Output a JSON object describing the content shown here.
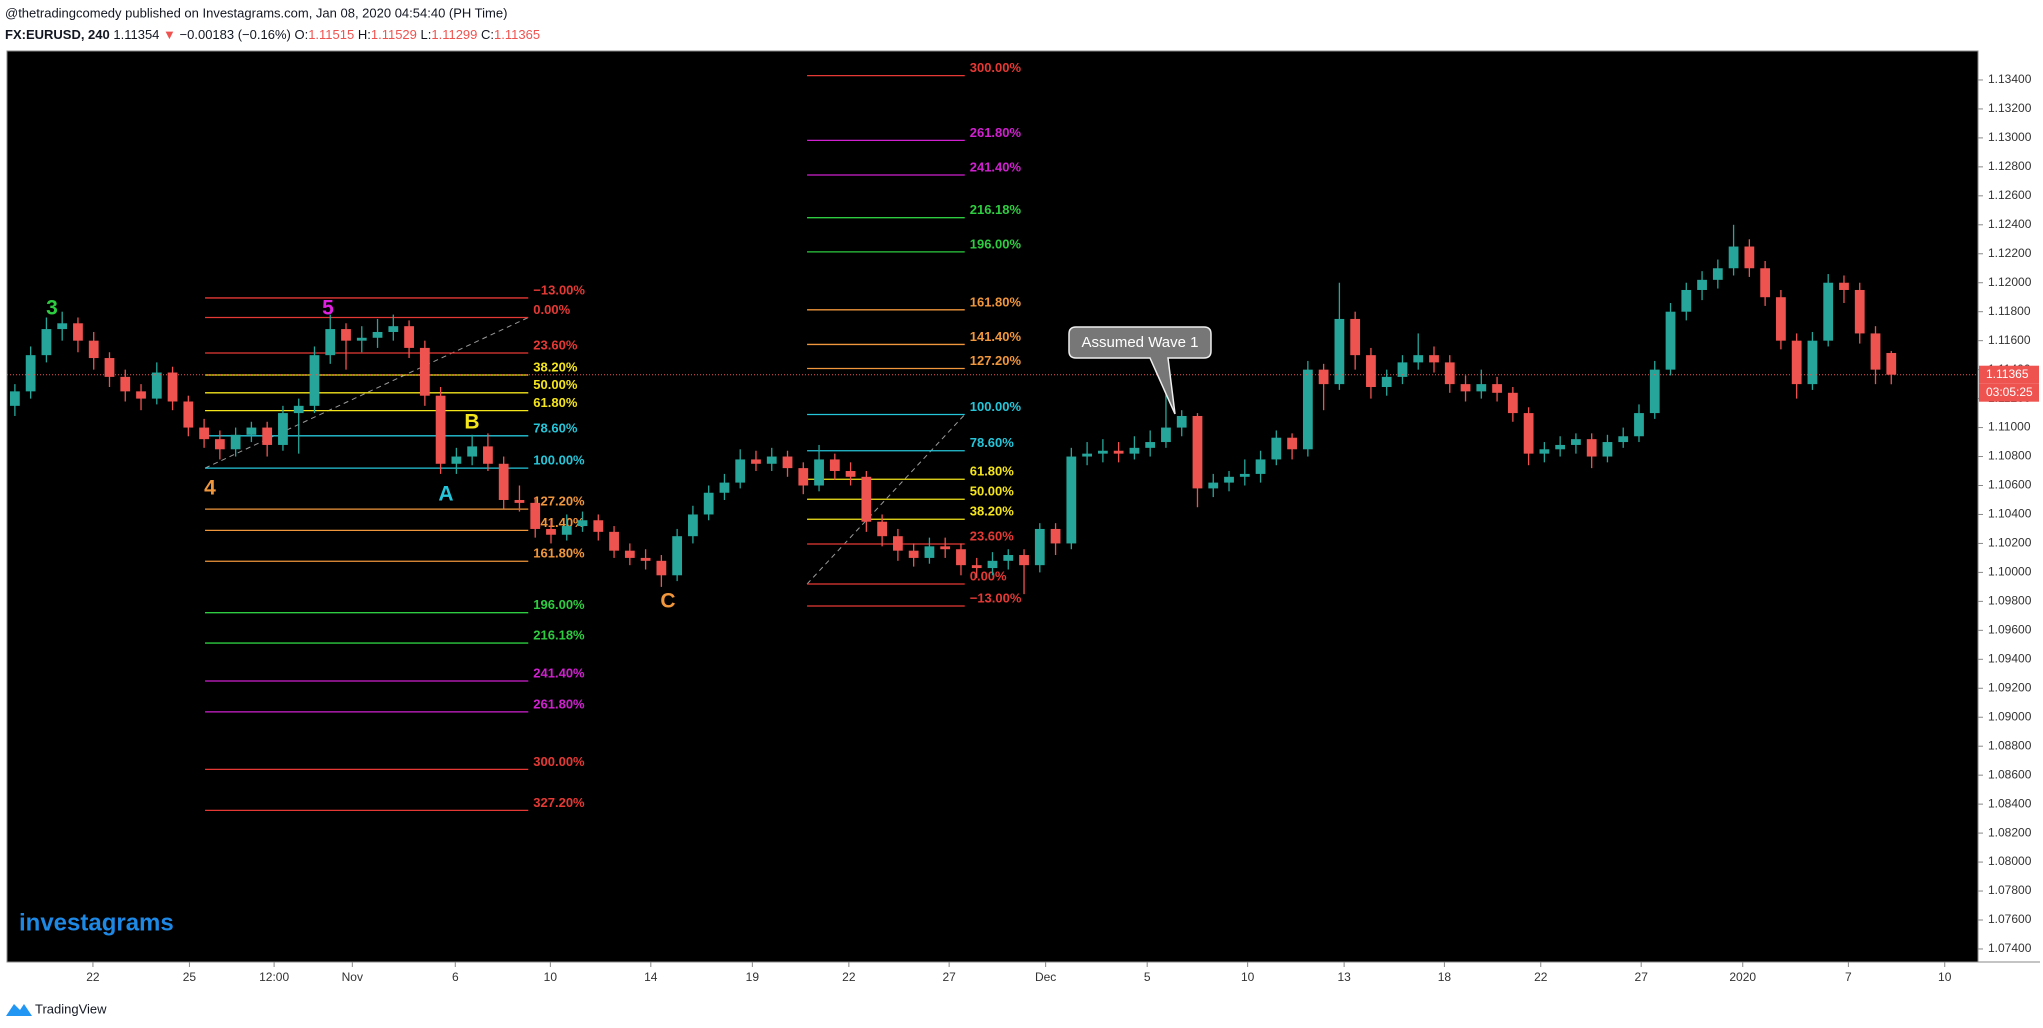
{
  "header": {
    "line1": "@thetradingcomedy published on Investagrams.com, Jan 08, 2020 04:54:40 (PH Time)",
    "symbol": "FX:EURUSD, 240",
    "last": "1.11354",
    "arrow": "▼",
    "change": "−0.00183 (−0.16%)",
    "ohlc": [
      {
        "label": "O:",
        "value": "1.11515"
      },
      {
        "label": "H:",
        "value": "1.11529"
      },
      {
        "label": "L:",
        "value": "1.11299"
      },
      {
        "label": "C:",
        "value": "1.11365"
      }
    ]
  },
  "chart_data": {
    "type": "candlestick",
    "up_color": "#26a69a",
    "down_color": "#ef5350",
    "candles": [
      [
        1.1115,
        1.113,
        1.1108,
        1.1125
      ],
      [
        1.1125,
        1.1156,
        1.112,
        1.115
      ],
      [
        1.115,
        1.1176,
        1.1145,
        1.1168
      ],
      [
        1.1168,
        1.118,
        1.116,
        1.1172
      ],
      [
        1.1172,
        1.1176,
        1.1152,
        1.116
      ],
      [
        1.116,
        1.1166,
        1.114,
        1.1148
      ],
      [
        1.1148,
        1.1152,
        1.1128,
        1.1135
      ],
      [
        1.1135,
        1.114,
        1.1118,
        1.1125
      ],
      [
        1.1125,
        1.113,
        1.1112,
        1.112
      ],
      [
        1.112,
        1.1145,
        1.1116,
        1.1138
      ],
      [
        1.1138,
        1.1142,
        1.1112,
        1.1118
      ],
      [
        1.1118,
        1.1122,
        1.1094,
        1.11
      ],
      [
        1.11,
        1.1106,
        1.1086,
        1.1092
      ],
      [
        1.1092,
        1.1098,
        1.1078,
        1.1085
      ],
      [
        1.1085,
        1.11,
        1.108,
        1.1095
      ],
      [
        1.1095,
        1.1104,
        1.109,
        1.11
      ],
      [
        1.11,
        1.1104,
        1.108,
        1.1088
      ],
      [
        1.1088,
        1.1115,
        1.1084,
        1.111
      ],
      [
        1.111,
        1.112,
        1.1082,
        1.1115
      ],
      [
        1.1115,
        1.1156,
        1.111,
        1.115
      ],
      [
        1.115,
        1.1178,
        1.1144,
        1.1168
      ],
      [
        1.1168,
        1.1172,
        1.114,
        1.116
      ],
      [
        1.116,
        1.117,
        1.1152,
        1.1162
      ],
      [
        1.1162,
        1.1175,
        1.1155,
        1.1166
      ],
      [
        1.1166,
        1.1178,
        1.116,
        1.117
      ],
      [
        1.117,
        1.1174,
        1.1148,
        1.1155
      ],
      [
        1.1155,
        1.116,
        1.1115,
        1.1122
      ],
      [
        1.1122,
        1.1128,
        1.1068,
        1.1075
      ],
      [
        1.1075,
        1.1086,
        1.1068,
        1.108
      ],
      [
        1.108,
        1.1095,
        1.1074,
        1.1087
      ],
      [
        1.1087,
        1.1096,
        1.107,
        1.1075
      ],
      [
        1.1075,
        1.108,
        1.1044,
        1.105
      ],
      [
        1.105,
        1.106,
        1.1042,
        1.1048
      ],
      [
        1.1048,
        1.1052,
        1.1024,
        1.103
      ],
      [
        1.103,
        1.1036,
        1.102,
        1.1026
      ],
      [
        1.1026,
        1.104,
        1.1022,
        1.1032
      ],
      [
        1.1032,
        1.1042,
        1.1028,
        1.1036
      ],
      [
        1.1036,
        1.104,
        1.1022,
        1.1028
      ],
      [
        1.1028,
        1.1032,
        1.101,
        1.1015
      ],
      [
        1.1015,
        1.102,
        1.1005,
        1.101
      ],
      [
        1.101,
        1.1016,
        1.1002,
        1.1008
      ],
      [
        1.1008,
        1.1012,
        1.099,
        1.0998
      ],
      [
        1.0998,
        1.103,
        1.0994,
        1.1025
      ],
      [
        1.1025,
        1.1046,
        1.102,
        1.104
      ],
      [
        1.104,
        1.106,
        1.1036,
        1.1055
      ],
      [
        1.1055,
        1.1068,
        1.105,
        1.1062
      ],
      [
        1.1062,
        1.1085,
        1.1058,
        1.1078
      ],
      [
        1.1078,
        1.1084,
        1.107,
        1.1075
      ],
      [
        1.1075,
        1.1086,
        1.107,
        1.108
      ],
      [
        1.108,
        1.1084,
        1.1066,
        1.1072
      ],
      [
        1.1072,
        1.1076,
        1.1054,
        1.106
      ],
      [
        1.106,
        1.1088,
        1.1056,
        1.1078
      ],
      [
        1.1078,
        1.1082,
        1.1064,
        1.107
      ],
      [
        1.107,
        1.1076,
        1.106,
        1.1066
      ],
      [
        1.1066,
        1.107,
        1.1028,
        1.1035
      ],
      [
        1.1035,
        1.104,
        1.1018,
        1.1025
      ],
      [
        1.1025,
        1.103,
        1.1008,
        1.1015
      ],
      [
        1.1015,
        1.102,
        1.1004,
        1.101
      ],
      [
        1.101,
        1.1024,
        1.1006,
        1.1018
      ],
      [
        1.1018,
        1.1024,
        1.101,
        1.1016
      ],
      [
        1.1016,
        1.102,
        1.0998,
        1.1005
      ],
      [
        1.1005,
        1.101,
        1.0996,
        1.1003
      ],
      [
        1.1003,
        1.1014,
        1.0998,
        1.1008
      ],
      [
        1.1008,
        1.1016,
        1.1002,
        1.1012
      ],
      [
        1.1012,
        1.1016,
        1.0985,
        1.1005
      ],
      [
        1.1005,
        1.1034,
        1.1,
        1.103
      ],
      [
        1.103,
        1.1034,
        1.1012,
        1.102
      ],
      [
        1.102,
        1.1086,
        1.1016,
        1.108
      ],
      [
        1.108,
        1.109,
        1.1074,
        1.1082
      ],
      [
        1.1082,
        1.1092,
        1.1076,
        1.1084
      ],
      [
        1.1084,
        1.109,
        1.1076,
        1.1082
      ],
      [
        1.1082,
        1.1094,
        1.1078,
        1.1086
      ],
      [
        1.1086,
        1.1098,
        1.108,
        1.109
      ],
      [
        1.109,
        1.1125,
        1.1086,
        1.11
      ],
      [
        1.11,
        1.1112,
        1.1094,
        1.1108
      ],
      [
        1.1108,
        1.111,
        1.1045,
        1.1058
      ],
      [
        1.1058,
        1.1068,
        1.1052,
        1.1062
      ],
      [
        1.1062,
        1.107,
        1.1056,
        1.1066
      ],
      [
        1.1066,
        1.1078,
        1.106,
        1.1068
      ],
      [
        1.1068,
        1.1084,
        1.1062,
        1.1078
      ],
      [
        1.1078,
        1.1098,
        1.1074,
        1.1093
      ],
      [
        1.1093,
        1.1096,
        1.1078,
        1.1085
      ],
      [
        1.1085,
        1.1146,
        1.108,
        1.114
      ],
      [
        1.114,
        1.1144,
        1.1112,
        1.113
      ],
      [
        1.113,
        1.12,
        1.1126,
        1.1175
      ],
      [
        1.1175,
        1.118,
        1.114,
        1.115
      ],
      [
        1.115,
        1.1155,
        1.112,
        1.1128
      ],
      [
        1.1128,
        1.114,
        1.1122,
        1.1135
      ],
      [
        1.1135,
        1.115,
        1.113,
        1.1145
      ],
      [
        1.1145,
        1.1165,
        1.114,
        1.115
      ],
      [
        1.115,
        1.1156,
        1.1138,
        1.1145
      ],
      [
        1.1145,
        1.115,
        1.1124,
        1.113
      ],
      [
        1.113,
        1.1136,
        1.1118,
        1.1125
      ],
      [
        1.1125,
        1.114,
        1.112,
        1.113
      ],
      [
        1.113,
        1.1135,
        1.1118,
        1.1124
      ],
      [
        1.1124,
        1.1128,
        1.1104,
        1.111
      ],
      [
        1.111,
        1.1114,
        1.1074,
        1.1082
      ],
      [
        1.1082,
        1.109,
        1.1076,
        1.1085
      ],
      [
        1.1085,
        1.1094,
        1.108,
        1.1088
      ],
      [
        1.1088,
        1.1096,
        1.1082,
        1.1092
      ],
      [
        1.1092,
        1.1096,
        1.1072,
        1.108
      ],
      [
        1.108,
        1.1095,
        1.1076,
        1.109
      ],
      [
        1.109,
        1.11,
        1.1086,
        1.1094
      ],
      [
        1.1094,
        1.1116,
        1.109,
        1.111
      ],
      [
        1.111,
        1.1146,
        1.1106,
        1.114
      ],
      [
        1.114,
        1.1186,
        1.1136,
        1.118
      ],
      [
        1.118,
        1.12,
        1.1174,
        1.1195
      ],
      [
        1.1195,
        1.1208,
        1.1188,
        1.1202
      ],
      [
        1.1202,
        1.1216,
        1.1196,
        1.121
      ],
      [
        1.121,
        1.124,
        1.1205,
        1.1225
      ],
      [
        1.1225,
        1.123,
        1.1204,
        1.121
      ],
      [
        1.121,
        1.1215,
        1.1184,
        1.119
      ],
      [
        1.119,
        1.1195,
        1.1154,
        1.116
      ],
      [
        1.116,
        1.1165,
        1.112,
        1.113
      ],
      [
        1.113,
        1.1166,
        1.1126,
        1.116
      ],
      [
        1.116,
        1.1206,
        1.1156,
        1.12
      ],
      [
        1.12,
        1.1205,
        1.1186,
        1.1195
      ],
      [
        1.1195,
        1.12,
        1.1158,
        1.1165
      ],
      [
        1.1165,
        1.117,
        1.113,
        1.114
      ],
      [
        1.11515,
        1.11529,
        1.11299,
        1.11365
      ]
    ],
    "xlim": [
      0,
      125
    ],
    "xticks": [
      {
        "value": 5.45,
        "label": "22"
      },
      {
        "value": 11.57,
        "label": "25"
      },
      {
        "value": 16.94,
        "label": "12:00"
      },
      {
        "value": 21.9,
        "label": "Nov"
      },
      {
        "value": 28.43,
        "label": "6"
      },
      {
        "value": 34.46,
        "label": "10"
      },
      {
        "value": 40.83,
        "label": "14"
      },
      {
        "value": 47.27,
        "label": "19"
      },
      {
        "value": 53.39,
        "label": "22"
      },
      {
        "value": 59.75,
        "label": "27"
      },
      {
        "value": 65.87,
        "label": "Dec"
      },
      {
        "value": 72.31,
        "label": "5"
      },
      {
        "value": 78.68,
        "label": "10"
      },
      {
        "value": 84.8,
        "label": "13"
      },
      {
        "value": 91.16,
        "label": "18"
      },
      {
        "value": 97.27,
        "label": "22"
      },
      {
        "value": 103.64,
        "label": "27"
      },
      {
        "value": 110.08,
        "label": "2020"
      },
      {
        "value": 116.78,
        "label": "7"
      },
      {
        "value": 122.89,
        "label": "10"
      }
    ],
    "ylim": [
      1.0731,
      1.136
    ],
    "yticks": [
      {
        "value": 1.074,
        "label": "1.07400"
      },
      {
        "value": 1.076,
        "label": "1.07600"
      },
      {
        "value": 1.078,
        "label": "1.07800"
      },
      {
        "value": 1.08,
        "label": "1.08000"
      },
      {
        "value": 1.082,
        "label": "1.08200"
      },
      {
        "value": 1.084,
        "label": "1.08400"
      },
      {
        "value": 1.086,
        "label": "1.08600"
      },
      {
        "value": 1.088,
        "label": "1.08800"
      },
      {
        "value": 1.09,
        "label": "1.09000"
      },
      {
        "value": 1.092,
        "label": "1.09200"
      },
      {
        "value": 1.094,
        "label": "1.09400"
      },
      {
        "value": 1.096,
        "label": "1.09600"
      },
      {
        "value": 1.098,
        "label": "1.09800"
      },
      {
        "value": 1.1,
        "label": "1.10000"
      },
      {
        "value": 1.102,
        "label": "1.10200"
      },
      {
        "value": 1.104,
        "label": "1.10400"
      },
      {
        "value": 1.106,
        "label": "1.10600"
      },
      {
        "value": 1.108,
        "label": "1.10800"
      },
      {
        "value": 1.11,
        "label": "1.11000"
      },
      {
        "value": 1.112,
        "label": "1.11200"
      },
      {
        "value": 1.114,
        "label": "1.11400"
      },
      {
        "value": 1.116,
        "label": "1.11600"
      },
      {
        "value": 1.118,
        "label": "1.11800"
      },
      {
        "value": 1.12,
        "label": "1.12000"
      },
      {
        "value": 1.122,
        "label": "1.12200"
      },
      {
        "value": 1.124,
        "label": "1.12400"
      },
      {
        "value": 1.126,
        "label": "1.12600"
      },
      {
        "value": 1.128,
        "label": "1.12800"
      },
      {
        "value": 1.13,
        "label": "1.13000"
      },
      {
        "value": 1.132,
        "label": "1.13200"
      },
      {
        "value": 1.134,
        "label": "1.13400"
      }
    ],
    "grid": false,
    "fib_retracements": [
      {
        "x_range": [
          12.56,
          33.06
        ],
        "levels": [
          {
            "label": "−13.00%",
            "price": 1.11895,
            "color": "#e53935"
          },
          {
            "label": "0.00%",
            "price": 1.1176,
            "color": "#e53935"
          },
          {
            "label": "23.60%",
            "price": 1.11515,
            "color": "#e53935"
          },
          {
            "label": "38.20%",
            "price": 1.11363,
            "color": "#f5e51b"
          },
          {
            "label": "50.00%",
            "price": 1.1124,
            "color": "#f5e51b"
          },
          {
            "label": "61.80%",
            "price": 1.11117,
            "color": "#f5e51b"
          },
          {
            "label": "78.60%",
            "price": 1.10943,
            "color": "#26c6da"
          },
          {
            "label": "100.00%",
            "price": 1.1072,
            "color": "#26c6da"
          },
          {
            "label": "127.20%",
            "price": 1.10437,
            "color": "#f0963c"
          },
          {
            "label": "141.40%",
            "price": 1.1029,
            "color": "#f0963c"
          },
          {
            "label": "161.80%",
            "price": 1.10077,
            "color": "#f0963c"
          },
          {
            "label": "196.00%",
            "price": 1.09722,
            "color": "#2ecc40"
          },
          {
            "label": "216.18%",
            "price": 1.09512,
            "color": "#2ecc40"
          },
          {
            "label": "241.40%",
            "price": 1.0925,
            "color": "#d020d0"
          },
          {
            "label": "261.80%",
            "price": 1.09037,
            "color": "#d020d0"
          },
          {
            "label": "300.00%",
            "price": 1.0864,
            "color": "#e53935"
          },
          {
            "label": "327.20%",
            "price": 1.08357,
            "color": "#e53935"
          }
        ]
      },
      {
        "x_range": [
          50.74,
          60.74
        ],
        "levels": [
          {
            "label": "−13.00%",
            "price": 1.09768,
            "color": "#e53935"
          },
          {
            "label": "0.00%",
            "price": 1.0992,
            "color": "#e53935"
          },
          {
            "label": "23.60%",
            "price": 1.10196,
            "color": "#e53935"
          },
          {
            "label": "38.20%",
            "price": 1.10367,
            "color": "#f5e51b"
          },
          {
            "label": "50.00%",
            "price": 1.10505,
            "color": "#f5e51b"
          },
          {
            "label": "61.80%",
            "price": 1.10643,
            "color": "#f5e51b"
          },
          {
            "label": "78.60%",
            "price": 1.1084,
            "color": "#26c6da"
          },
          {
            "label": "100.00%",
            "price": 1.1109,
            "color": "#26c6da"
          },
          {
            "label": "127.20%",
            "price": 1.11408,
            "color": "#f0963c"
          },
          {
            "label": "141.40%",
            "price": 1.11574,
            "color": "#f0963c"
          },
          {
            "label": "161.80%",
            "price": 1.11813,
            "color": "#f0963c"
          },
          {
            "label": "196.00%",
            "price": 1.12213,
            "color": "#2ecc40"
          },
          {
            "label": "216.18%",
            "price": 1.12449,
            "color": "#2ecc40"
          },
          {
            "label": "241.40%",
            "price": 1.12744,
            "color": "#d020d0"
          },
          {
            "label": "261.80%",
            "price": 1.12983,
            "color": "#d020d0"
          },
          {
            "label": "300.00%",
            "price": 1.1343,
            "color": "#e53935"
          }
        ]
      }
    ],
    "annotations": [
      {
        "text": "3",
        "color": "#2ecc40"
      },
      {
        "text": "5",
        "color": "#e020e0"
      },
      {
        "text": "4",
        "color": "#f0963c"
      },
      {
        "text": "A",
        "color": "#26c6da"
      },
      {
        "text": "B",
        "color": "#f5e51b"
      },
      {
        "text": "C",
        "color": "#f0963c"
      }
    ],
    "callout": "Assumed Wave 1",
    "countdown": "03:05:25"
  },
  "watermark": "investagrams",
  "footer": "TradingView"
}
